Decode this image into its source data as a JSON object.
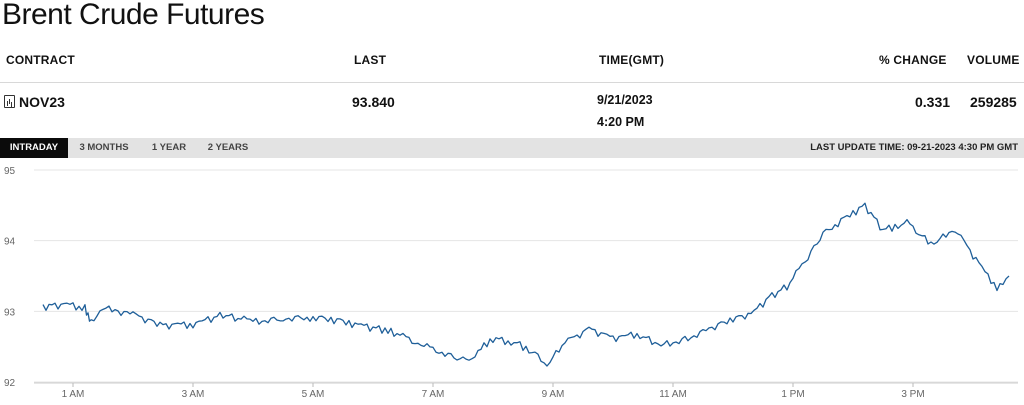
{
  "page_title": "Brent Crude Futures",
  "table": {
    "headers": {
      "contract": "CONTRACT",
      "last": "LAST",
      "time": "TIME(GMT)",
      "change": "% CHANGE",
      "volume": "VOLUME"
    },
    "row": {
      "contract": "NOV23",
      "last": "93.840",
      "date": "9/21/2023",
      "time": "4:20 PM",
      "change": "0.331",
      "volume": "259285"
    }
  },
  "tabs": [
    "INTRADAY",
    "3 MONTHS",
    "1 YEAR",
    "2 YEARS"
  ],
  "active_tab": "INTRADAY",
  "last_update": "LAST UPDATE TIME: 09-21-2023 4:30 PM GMT",
  "colors": {
    "line": "#1f5f99",
    "grid": "#e5e5e5",
    "tab_active": "#0b0b0b",
    "tabbar": "#e3e3e3"
  },
  "icons": {
    "contract": "document-chart-icon"
  },
  "chart_data": {
    "type": "line",
    "title": "",
    "xlabel": "",
    "ylabel": "",
    "x_ticks": [
      "1 AM",
      "3 AM",
      "5 AM",
      "7 AM",
      "9 AM",
      "11 AM",
      "1 PM",
      "3 PM"
    ],
    "y_ticks": [
      92,
      93,
      94,
      95
    ],
    "ylim": [
      92,
      95
    ],
    "xlim_hours": [
      0.35,
      16.75
    ],
    "grid": "horizontal",
    "series": [
      {
        "x": [
          0.5,
          0.9,
          1.2,
          1.3,
          1.5,
          2.0,
          2.5,
          3.0,
          3.5,
          4.0,
          4.5,
          5.0,
          5.4,
          5.8,
          6.3,
          6.8,
          7.2,
          7.6,
          7.8,
          8.0,
          8.4,
          8.7,
          8.9,
          9.2,
          9.6,
          10.0,
          10.4,
          10.8,
          11.2,
          11.6,
          12.0,
          12.3,
          12.6,
          12.9,
          13.2,
          13.5,
          13.9,
          14.2,
          14.5,
          14.9,
          15.3,
          15.7,
          16.0,
          16.2,
          16.4,
          16.6
        ],
        "values": [
          93.07,
          93.1,
          93.05,
          92.85,
          93.05,
          92.95,
          92.8,
          92.82,
          92.95,
          92.85,
          92.9,
          92.92,
          92.88,
          92.8,
          92.72,
          92.52,
          92.4,
          92.28,
          92.5,
          92.62,
          92.55,
          92.4,
          92.25,
          92.55,
          92.75,
          92.62,
          92.68,
          92.52,
          92.6,
          92.75,
          92.9,
          92.95,
          93.2,
          93.35,
          93.7,
          94.1,
          94.35,
          94.5,
          94.15,
          94.25,
          93.95,
          94.15,
          93.8,
          93.55,
          93.35,
          93.5
        ]
      }
    ]
  }
}
